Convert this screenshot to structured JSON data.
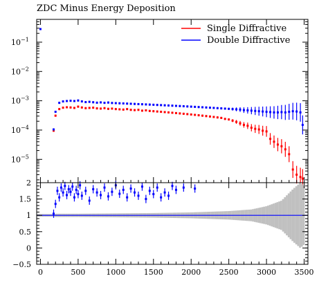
{
  "chart_data": [
    {
      "type": "scatter",
      "panel": "main",
      "title": "ZDC Minus Energy Deposition",
      "yscale": "log",
      "xlim": [
        -50,
        3550
      ],
      "ylim": [
        1.6e-06,
        0.6
      ],
      "xticks": [
        0,
        500,
        1000,
        1500,
        2000,
        2500,
        3000,
        3500
      ],
      "yticks": [
        {
          "value": 0.1,
          "base": "10",
          "exp": "−1"
        },
        {
          "value": 0.01,
          "base": "10",
          "exp": "−2"
        },
        {
          "value": 0.001,
          "base": "10",
          "exp": "−3"
        },
        {
          "value": 0.0001,
          "base": "10",
          "exp": "−4"
        },
        {
          "value": 1e-05,
          "base": "10",
          "exp": "−5"
        }
      ],
      "legend_position": "top-right",
      "series": [
        {
          "name": "Single Diffractive",
          "color": "#ff0000",
          "points": [
            [
              175,
              9.5e-05
            ],
            [
              200,
              0.00031
            ],
            [
              250,
              0.00052
            ],
            [
              300,
              0.00058
            ],
            [
              350,
              0.0006
            ],
            [
              400,
              0.00059
            ],
            [
              450,
              0.00057
            ],
            [
              500,
              0.00063
            ],
            [
              550,
              0.00059
            ],
            [
              600,
              0.00056
            ],
            [
              650,
              0.00057
            ],
            [
              700,
              0.00058
            ],
            [
              750,
              0.00055
            ],
            [
              800,
              0.00054
            ],
            [
              850,
              0.00056
            ],
            [
              900,
              0.00053
            ],
            [
              950,
              0.00054
            ],
            [
              1000,
              0.00052
            ],
            [
              1050,
              0.00051
            ],
            [
              1100,
              0.0005
            ],
            [
              1150,
              0.00052
            ],
            [
              1200,
              0.00049
            ],
            [
              1250,
              0.00048
            ],
            [
              1300,
              0.00049
            ],
            [
              1350,
              0.00046
            ],
            [
              1400,
              0.00047
            ],
            [
              1450,
              0.00045
            ],
            [
              1500,
              0.00044
            ],
            [
              1550,
              0.00043
            ],
            [
              1600,
              0.00042
            ],
            [
              1650,
              0.00041
            ],
            [
              1700,
              0.0004
            ],
            [
              1750,
              0.00039
            ],
            [
              1800,
              0.00038
            ],
            [
              1850,
              0.00037
            ],
            [
              1900,
              0.00036
            ],
            [
              1950,
              0.00035
            ],
            [
              2000,
              0.00034
            ],
            [
              2050,
              0.00033
            ],
            [
              2100,
              0.00032
            ],
            [
              2150,
              0.00031
            ],
            [
              2200,
              0.0003
            ],
            [
              2250,
              0.00029
            ],
            [
              2300,
              0.00028
            ],
            [
              2350,
              0.00027
            ],
            [
              2400,
              0.00026
            ],
            [
              2450,
              0.00024
            ],
            [
              2500,
              0.00023
            ],
            [
              2550,
              0.00021
            ],
            [
              2600,
              0.00019
            ],
            [
              2650,
              0.00017
            ],
            [
              2700,
              0.00015
            ],
            [
              2750,
              0.00014
            ],
            [
              2800,
              0.00012
            ],
            [
              2850,
              0.00011
            ],
            [
              2900,
              0.000105
            ],
            [
              2950,
              9.5e-05
            ],
            [
              3000,
              9e-05
            ],
            [
              3050,
              5e-05
            ],
            [
              3100,
              4e-05
            ],
            [
              3150,
              3.2e-05
            ],
            [
              3200,
              2.8e-05
            ],
            [
              3250,
              2.2e-05
            ],
            [
              3300,
              1.5e-05
            ],
            [
              3350,
              4.5e-06
            ],
            [
              3400,
              3e-06
            ],
            [
              3450,
              2.5e-06
            ],
            [
              3480,
              2.2e-06
            ]
          ]
        },
        {
          "name": "Double Diffractive",
          "color": "#0000ff",
          "points": [
            [
              0,
              0.28
            ],
            [
              175,
              0.000105
            ],
            [
              200,
              0.00042
            ],
            [
              250,
              0.00085
            ],
            [
              300,
              0.00095
            ],
            [
              350,
              0.00098
            ],
            [
              400,
              0.001
            ],
            [
              450,
              0.00098
            ],
            [
              500,
              0.00102
            ],
            [
              550,
              0.00095
            ],
            [
              600,
              0.0009
            ],
            [
              650,
              0.00092
            ],
            [
              700,
              0.00089
            ],
            [
              750,
              0.00086
            ],
            [
              800,
              0.00088
            ],
            [
              850,
              0.00085
            ],
            [
              900,
              0.00087
            ],
            [
              950,
              0.00084
            ],
            [
              1000,
              0.00083
            ],
            [
              1050,
              0.00082
            ],
            [
              1100,
              0.00081
            ],
            [
              1150,
              0.0008
            ],
            [
              1200,
              0.00079
            ],
            [
              1250,
              0.00078
            ],
            [
              1300,
              0.00077
            ],
            [
              1350,
              0.00076
            ],
            [
              1400,
              0.00075
            ],
            [
              1450,
              0.00074
            ],
            [
              1500,
              0.00073
            ],
            [
              1550,
              0.00072
            ],
            [
              1600,
              0.00071
            ],
            [
              1650,
              0.0007
            ],
            [
              1700,
              0.00069
            ],
            [
              1750,
              0.00068
            ],
            [
              1800,
              0.00067
            ],
            [
              1850,
              0.00066
            ],
            [
              1900,
              0.00065
            ],
            [
              1950,
              0.00064
            ],
            [
              2000,
              0.00063
            ],
            [
              2050,
              0.00062
            ],
            [
              2100,
              0.00061
            ],
            [
              2150,
              0.0006
            ],
            [
              2200,
              0.00059
            ],
            [
              2250,
              0.00058
            ],
            [
              2300,
              0.00057
            ],
            [
              2350,
              0.00056
            ],
            [
              2400,
              0.00055
            ],
            [
              2450,
              0.00054
            ],
            [
              2500,
              0.00053
            ],
            [
              2550,
              0.00052
            ],
            [
              2600,
              0.00051
            ],
            [
              2650,
              0.0005
            ],
            [
              2700,
              0.00048
            ],
            [
              2750,
              0.00047
            ],
            [
              2800,
              0.00046
            ],
            [
              2850,
              0.00045
            ],
            [
              2900,
              0.00044
            ],
            [
              2950,
              0.00043
            ],
            [
              3000,
              0.00042
            ],
            [
              3050,
              0.00041
            ],
            [
              3100,
              0.0004
            ],
            [
              3150,
              0.0004
            ],
            [
              3200,
              0.00041
            ],
            [
              3250,
              0.0004
            ],
            [
              3300,
              0.00042
            ],
            [
              3350,
              0.00044
            ],
            [
              3400,
              0.00043
            ],
            [
              3450,
              0.0004
            ],
            [
              3480,
              0.00015
            ]
          ]
        }
      ]
    },
    {
      "type": "scatter",
      "panel": "ratio",
      "xlim": [
        -50,
        3550
      ],
      "ylim": [
        -0.5,
        2
      ],
      "xticks": [
        0,
        500,
        1000,
        1500,
        2000,
        2500,
        3000,
        3500
      ],
      "yticks": [
        {
          "value": 2,
          "label": "2"
        },
        {
          "value": 1.5,
          "label": "1.5"
        },
        {
          "value": 1,
          "label": "1"
        },
        {
          "value": 0.5,
          "label": "0.5"
        },
        {
          "value": 0,
          "label": "0"
        },
        {
          "value": -0.5,
          "label": "−0.5"
        }
      ],
      "reference_line": {
        "value": 1,
        "color": "#0000ff"
      },
      "band_color": "#c0c0c0",
      "marker_color": "#0000ff",
      "ratio_points": [
        [
          175,
          1.05
        ],
        [
          200,
          1.35
        ],
        [
          225,
          1.75
        ],
        [
          250,
          1.55
        ],
        [
          275,
          1.85
        ],
        [
          300,
          1.7
        ],
        [
          325,
          1.9
        ],
        [
          350,
          1.62
        ],
        [
          375,
          1.8
        ],
        [
          400,
          1.72
        ],
        [
          425,
          1.88
        ],
        [
          450,
          1.55
        ],
        [
          475,
          1.78
        ],
        [
          500,
          1.65
        ],
        [
          525,
          1.92
        ],
        [
          550,
          1.6
        ],
        [
          600,
          1.75
        ],
        [
          650,
          1.45
        ],
        [
          700,
          1.8
        ],
        [
          750,
          1.7
        ],
        [
          800,
          1.62
        ],
        [
          850,
          1.85
        ],
        [
          900,
          1.58
        ],
        [
          950,
          1.72
        ],
        [
          1000,
          1.92
        ],
        [
          1050,
          1.66
        ],
        [
          1100,
          1.78
        ],
        [
          1150,
          1.55
        ],
        [
          1200,
          1.82
        ],
        [
          1250,
          1.7
        ],
        [
          1300,
          1.6
        ],
        [
          1350,
          1.88
        ],
        [
          1400,
          1.5
        ],
        [
          1450,
          1.75
        ],
        [
          1500,
          1.65
        ],
        [
          1550,
          1.85
        ],
        [
          1600,
          1.55
        ],
        [
          1650,
          1.7
        ],
        [
          1700,
          1.6
        ],
        [
          1750,
          1.9
        ],
        [
          1800,
          1.78
        ],
        [
          1900,
          1.85
        ],
        [
          2050,
          1.82
        ]
      ],
      "band": [
        [
          -30,
          0.04
        ],
        [
          175,
          0.04
        ],
        [
          200,
          0.05
        ],
        [
          300,
          0.05
        ],
        [
          500,
          0.05
        ],
        [
          1000,
          0.06
        ],
        [
          1500,
          0.07
        ],
        [
          2000,
          0.09
        ],
        [
          2500,
          0.13
        ],
        [
          2800,
          0.18
        ],
        [
          3000,
          0.28
        ],
        [
          3200,
          0.45
        ],
        [
          3350,
          0.8
        ],
        [
          3450,
          1.0
        ],
        [
          3500,
          0.9
        ]
      ]
    }
  ]
}
